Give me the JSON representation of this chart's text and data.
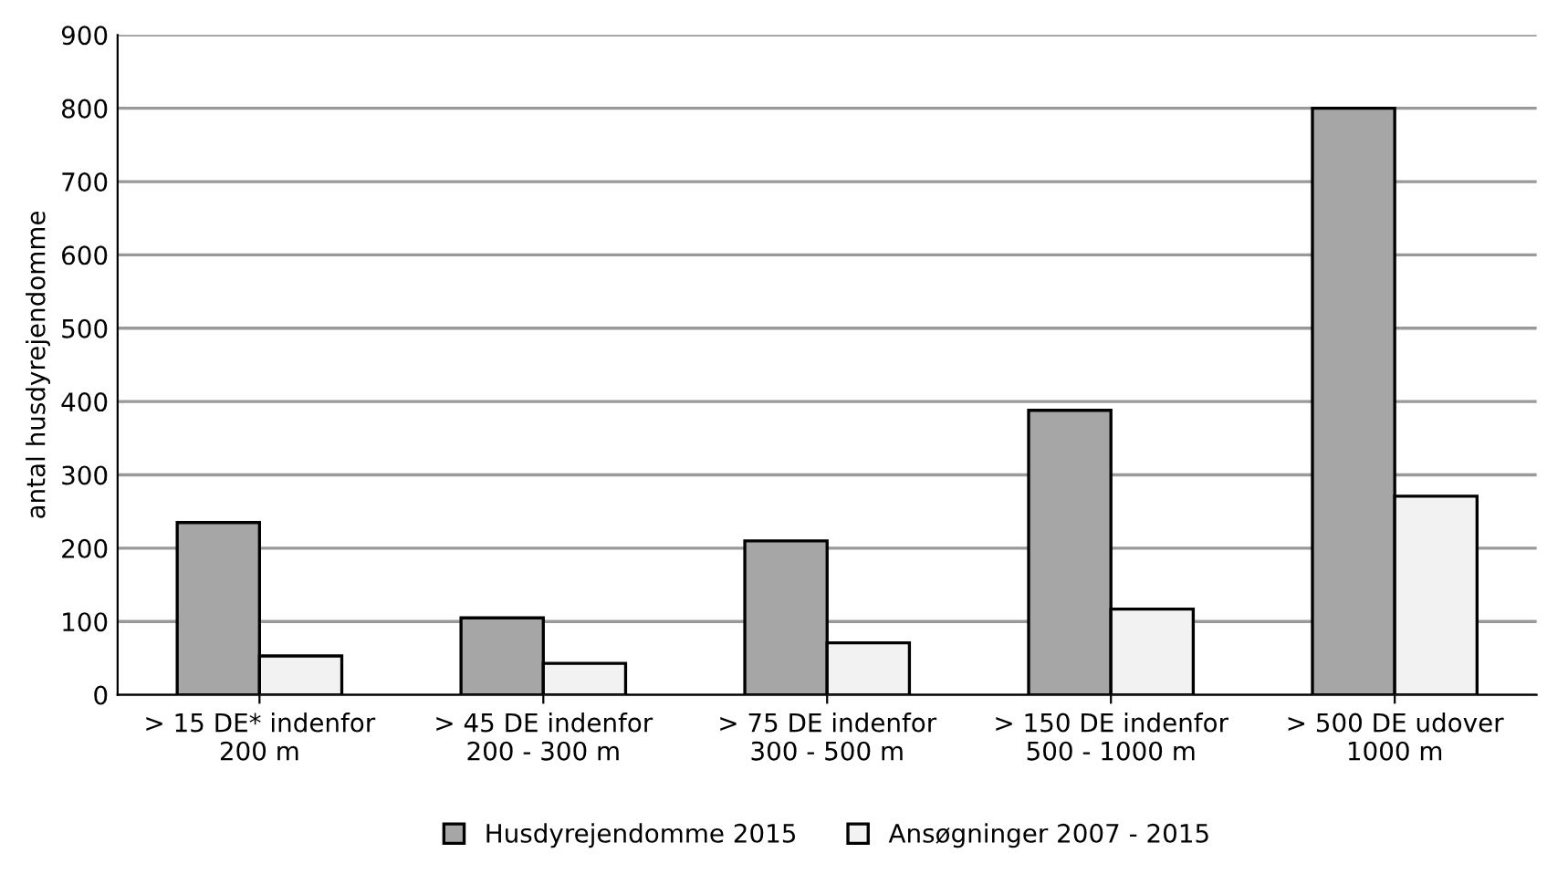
{
  "chart_data": {
    "type": "bar",
    "ylabel": "antal husdyrejendomme",
    "categories": [
      "> 15 DE* indenfor\n200 m",
      "> 45 DE indenfor\n200 - 300 m",
      "> 75 DE indenfor\n300 - 500 m",
      "> 150 DE indenfor\n500 - 1000 m",
      "> 500 DE udover\n1000 m"
    ],
    "series": [
      {
        "name": "Husdyrejendomme 2015",
        "color": "#a6a6a6",
        "values": [
          235,
          105,
          210,
          388,
          800
        ]
      },
      {
        "name": "Ansøgninger 2007 - 2015",
        "color": "#f2f2f2",
        "values": [
          53,
          43,
          71,
          117,
          271
        ]
      }
    ],
    "ylim": [
      0,
      900
    ],
    "yticks": [
      0,
      100,
      200,
      300,
      400,
      500,
      600,
      700,
      800,
      900
    ],
    "grid": "y",
    "legend": "bottom"
  }
}
